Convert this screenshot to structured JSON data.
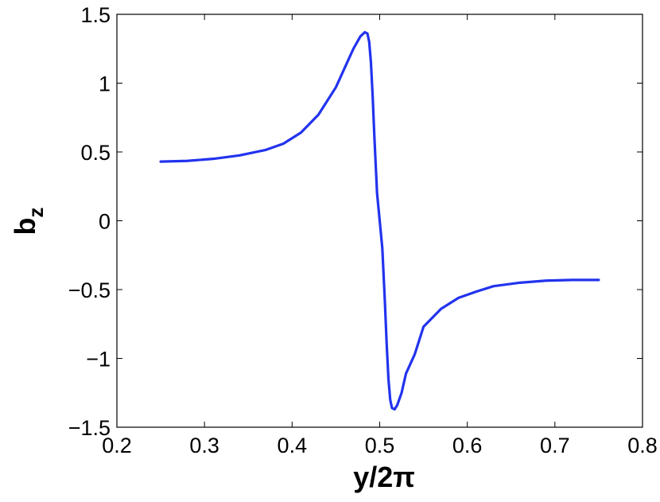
{
  "chart_data": {
    "type": "line",
    "title": "",
    "xlabel": "y/2π",
    "ylabel": {
      "main": "b",
      "subscript": "z"
    },
    "xlim": [
      0.2,
      0.8
    ],
    "ylim": [
      -1.5,
      1.5
    ],
    "xticks": [
      0.2,
      0.3,
      0.4,
      0.5,
      0.6,
      0.7,
      0.8
    ],
    "yticks": [
      -1.5,
      -1,
      -0.5,
      0,
      0.5,
      1,
      1.5
    ],
    "xtick_labels": [
      "0.2",
      "0.3",
      "0.4",
      "0.5",
      "0.6",
      "0.7",
      "0.8"
    ],
    "ytick_labels": [
      "−1.5",
      "−1",
      "−0.5",
      "0",
      "0.5",
      "1",
      "1.5"
    ],
    "grid": false,
    "legend": "none",
    "series": [
      {
        "color": "#2233ee",
        "x": [
          0.25,
          0.28,
          0.31,
          0.34,
          0.37,
          0.39,
          0.41,
          0.43,
          0.45,
          0.46,
          0.47,
          0.478,
          0.483,
          0.486,
          0.488,
          0.49,
          0.492,
          0.494,
          0.497,
          0.5,
          0.503,
          0.506,
          0.508,
          0.51,
          0.512,
          0.514,
          0.517,
          0.52,
          0.525,
          0.53,
          0.54,
          0.55,
          0.57,
          0.59,
          0.61,
          0.63,
          0.66,
          0.69,
          0.72,
          0.75
        ],
        "y": [
          0.43,
          0.435,
          0.45,
          0.475,
          0.515,
          0.56,
          0.64,
          0.77,
          0.97,
          1.11,
          1.25,
          1.34,
          1.37,
          1.36,
          1.3,
          1.15,
          0.9,
          0.6,
          0.2,
          0.0,
          -0.2,
          -0.6,
          -0.9,
          -1.15,
          -1.3,
          -1.36,
          -1.37,
          -1.34,
          -1.25,
          -1.11,
          -0.97,
          -0.77,
          -0.64,
          -0.56,
          -0.515,
          -0.475,
          -0.45,
          -0.435,
          -0.43,
          -0.43
        ]
      }
    ]
  }
}
